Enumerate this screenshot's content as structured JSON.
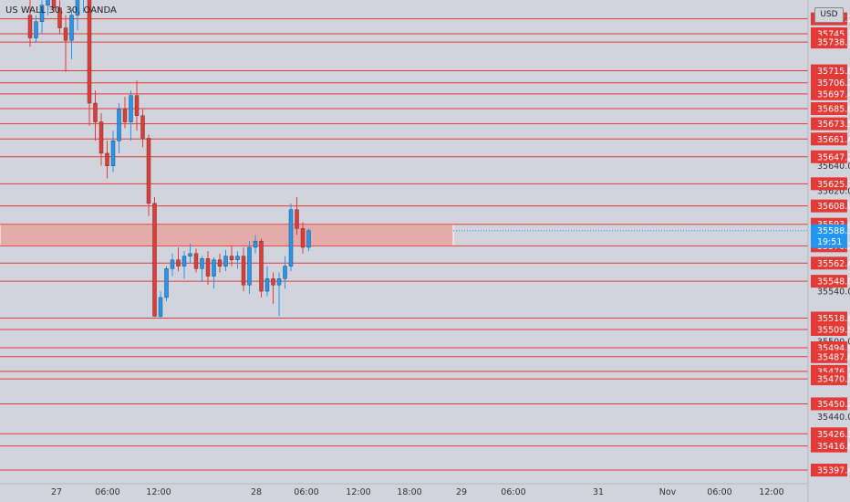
{
  "symbol_label": "US WALL 30, 30, OANDA",
  "currency_button": "USD",
  "colors": {
    "up": "#2196f3",
    "down": "#e53935",
    "level": "#e53935",
    "zone": "#f28b82",
    "grid_text": "#333333"
  },
  "levels": [
    {
      "price": 35757.2,
      "label": "35757.2"
    },
    {
      "price": 35745.3,
      "label": "35745.3"
    },
    {
      "price": 35738.7,
      "label": "35738.7"
    },
    {
      "price": 35715.8,
      "label": "35715.8"
    },
    {
      "price": 35706.2,
      "label": "35706.2"
    },
    {
      "price": 35697.4,
      "label": "35697.4"
    },
    {
      "price": 35685.6,
      "label": "35685.6"
    },
    {
      "price": 35673.5,
      "label": "35673.5"
    },
    {
      "price": 35661.4,
      "label": "35661.4"
    },
    {
      "price": 35647.2,
      "label": "35647.2"
    },
    {
      "price": 35625.7,
      "label": "35625.7"
    },
    {
      "price": 35608.0,
      "label": "35608.0"
    },
    {
      "price": 35593.4,
      "label": "35593.4"
    },
    {
      "price": 35576.2,
      "label": "35576.2"
    },
    {
      "price": 35562.4,
      "label": "35562.4"
    },
    {
      "price": 35548.0,
      "label": "35548.0"
    },
    {
      "price": 35518.6,
      "label": "35518.6"
    },
    {
      "price": 35509.5,
      "label": "35509.5"
    },
    {
      "price": 35494.9,
      "label": "35494.9"
    },
    {
      "price": 35487.8,
      "label": "35487.8"
    },
    {
      "price": 35476.1,
      "label": "35476.1"
    },
    {
      "price": 35470.1,
      "label": "35470.1"
    },
    {
      "price": 35450.2,
      "label": "35450.2"
    },
    {
      "price": 35426.3,
      "label": "35426.3"
    },
    {
      "price": 35416.6,
      "label": "35416.6"
    },
    {
      "price": 35397.4,
      "label": "35397.4"
    }
  ],
  "axis_prices": [
    {
      "price": 35640.0,
      "label": "35640.0"
    },
    {
      "price": 35620.0,
      "label": "35620.0"
    },
    {
      "price": 35540.0,
      "label": "35540.0"
    },
    {
      "price": 35500.0,
      "label": "35500.0"
    },
    {
      "price": 35440.0,
      "label": "35440.0"
    }
  ],
  "current": {
    "price": 35588.3,
    "label": "35588.3",
    "countdown": "19:51"
  },
  "zone": {
    "top": 35593.4,
    "bottom": 35576.2
  },
  "time_labels": [
    "27",
    "06:00",
    "12:00",
    "28",
    "06:00",
    "12:00",
    "18:00",
    "29",
    "06:00",
    "31",
    "Nov",
    "06:00",
    "12:00"
  ],
  "candles": [
    {
      "o": 35760,
      "h": 35800,
      "l": 35735,
      "c": 35742
    },
    {
      "o": 35742,
      "h": 35760,
      "l": 35738,
      "c": 35755
    },
    {
      "o": 35755,
      "h": 35772,
      "l": 35745,
      "c": 35768
    },
    {
      "o": 35768,
      "h": 35785,
      "l": 35760,
      "c": 35780
    },
    {
      "o": 35780,
      "h": 35790,
      "l": 35762,
      "c": 35766
    },
    {
      "o": 35766,
      "h": 35772,
      "l": 35745,
      "c": 35750
    },
    {
      "o": 35750,
      "h": 35760,
      "l": 35715,
      "c": 35740
    },
    {
      "o": 35740,
      "h": 35765,
      "l": 35725,
      "c": 35760
    },
    {
      "o": 35760,
      "h": 35780,
      "l": 35748,
      "c": 35775
    },
    {
      "o": 35775,
      "h": 35800,
      "l": 35762,
      "c": 35795
    },
    {
      "o": 35795,
      "h": 35800,
      "l": 35672,
      "c": 35690
    },
    {
      "o": 35690,
      "h": 35700,
      "l": 35660,
      "c": 35675
    },
    {
      "o": 35675,
      "h": 35682,
      "l": 35640,
      "c": 35650
    },
    {
      "o": 35650,
      "h": 35660,
      "l": 35630,
      "c": 35640
    },
    {
      "o": 35640,
      "h": 35668,
      "l": 35635,
      "c": 35660
    },
    {
      "o": 35660,
      "h": 35690,
      "l": 35650,
      "c": 35685
    },
    {
      "o": 35685,
      "h": 35695,
      "l": 35670,
      "c": 35675
    },
    {
      "o": 35675,
      "h": 35700,
      "l": 35660,
      "c": 35696
    },
    {
      "o": 35696,
      "h": 35708,
      "l": 35668,
      "c": 35680
    },
    {
      "o": 35680,
      "h": 35685,
      "l": 35655,
      "c": 35662
    },
    {
      "o": 35662,
      "h": 35665,
      "l": 35600,
      "c": 35610
    },
    {
      "o": 35610,
      "h": 35615,
      "l": 35520,
      "c": 35520
    },
    {
      "o": 35520,
      "h": 35540,
      "l": 35518,
      "c": 35535
    },
    {
      "o": 35535,
      "h": 35560,
      "l": 35532,
      "c": 35558
    },
    {
      "o": 35558,
      "h": 35570,
      "l": 35552,
      "c": 35565
    },
    {
      "o": 35565,
      "h": 35575,
      "l": 35556,
      "c": 35560
    },
    {
      "o": 35560,
      "h": 35572,
      "l": 35550,
      "c": 35568
    },
    {
      "o": 35568,
      "h": 35578,
      "l": 35562,
      "c": 35570
    },
    {
      "o": 35570,
      "h": 35574,
      "l": 35555,
      "c": 35558
    },
    {
      "o": 35558,
      "h": 35568,
      "l": 35548,
      "c": 35566
    },
    {
      "o": 35566,
      "h": 35572,
      "l": 35545,
      "c": 35552
    },
    {
      "o": 35552,
      "h": 35567,
      "l": 35542,
      "c": 35565
    },
    {
      "o": 35565,
      "h": 35570,
      "l": 35555,
      "c": 35560
    },
    {
      "o": 35560,
      "h": 35573,
      "l": 35556,
      "c": 35568
    },
    {
      "o": 35568,
      "h": 35576,
      "l": 35560,
      "c": 35565
    },
    {
      "o": 35565,
      "h": 35572,
      "l": 35558,
      "c": 35568
    },
    {
      "o": 35568,
      "h": 35575,
      "l": 35540,
      "c": 35545
    },
    {
      "o": 35545,
      "h": 35580,
      "l": 35538,
      "c": 35575
    },
    {
      "o": 35575,
      "h": 35585,
      "l": 35570,
      "c": 35580
    },
    {
      "o": 35580,
      "h": 35582,
      "l": 35535,
      "c": 35540
    },
    {
      "o": 35540,
      "h": 35560,
      "l": 35536,
      "c": 35550
    },
    {
      "o": 35550,
      "h": 35555,
      "l": 35530,
      "c": 35545
    },
    {
      "o": 35545,
      "h": 35555,
      "l": 35520,
      "c": 35550
    },
    {
      "o": 35550,
      "h": 35568,
      "l": 35542,
      "c": 35560
    },
    {
      "o": 35560,
      "h": 35610,
      "l": 35556,
      "c": 35605
    },
    {
      "o": 35605,
      "h": 35615,
      "l": 35585,
      "c": 35590
    },
    {
      "o": 35590,
      "h": 35595,
      "l": 35570,
      "c": 35575
    },
    {
      "o": 35575,
      "h": 35590,
      "l": 35572,
      "c": 35588.3
    }
  ]
}
